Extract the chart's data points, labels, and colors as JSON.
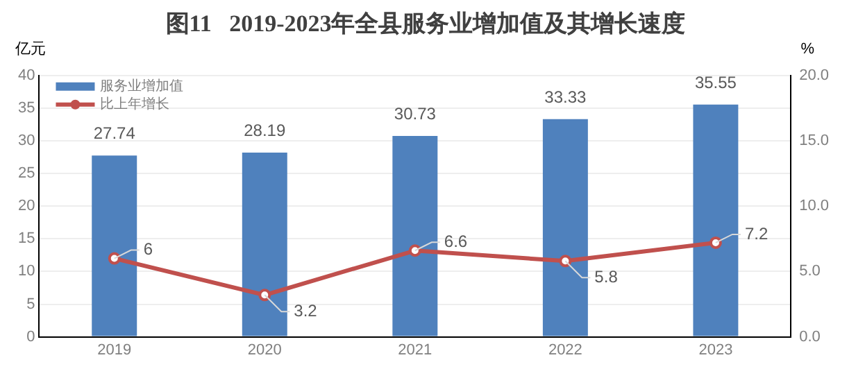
{
  "chart_data": {
    "type": "bar",
    "title": "图11   2019-2023年全县服务业增加值及其增长速度",
    "ylabel": "亿元",
    "y2label": "%",
    "categories": [
      "2019",
      "2020",
      "2021",
      "2022",
      "2023"
    ],
    "series": [
      {
        "name": "服务业增加值",
        "color": "#4f81bd",
        "values": [
          27.74,
          28.19,
          30.73,
          33.33,
          35.55
        ]
      },
      {
        "name": "比上年增长",
        "type": "line",
        "axis": "y2",
        "color": "#c0504d",
        "marker": "circle",
        "values": [
          6,
          3.2,
          6.6,
          5.8,
          7.2
        ]
      }
    ],
    "ylim": [
      0,
      40
    ],
    "yticks": [
      0,
      5,
      10,
      15,
      20,
      25,
      30,
      35,
      40
    ],
    "y2lim": [
      0,
      20
    ],
    "y2ticks": [
      {
        "value": 0,
        "label": "0.0"
      },
      {
        "value": 5,
        "label": "5.0"
      },
      {
        "value": 10,
        "label": "10.0"
      },
      {
        "value": 15,
        "label": "15.0"
      },
      {
        "value": 20,
        "label": "20.0"
      }
    ],
    "grid": "y",
    "legend": "top left",
    "data_labels": true
  }
}
